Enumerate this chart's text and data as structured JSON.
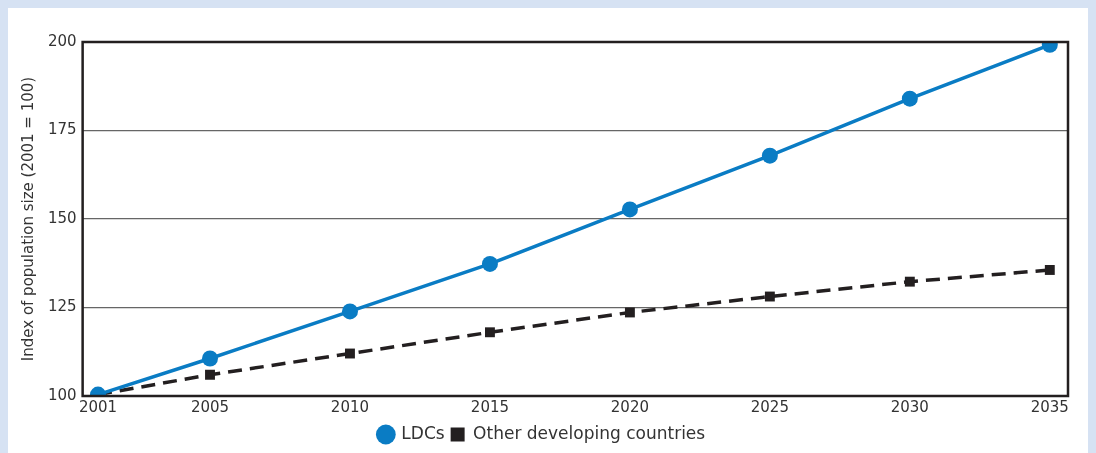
{
  "chart_data": {
    "type": "line",
    "ylabel": "Index of population size (2001 = 100)",
    "x": [
      2001,
      2005,
      2010,
      2015,
      2020,
      2025,
      2030,
      2035
    ],
    "series": [
      {
        "name": "LDCs",
        "color": "#0a7cc4",
        "marker": "circle",
        "line_style": "solid",
        "values": [
          100.4,
          110.6,
          123.9,
          137.3,
          152.7,
          167.9,
          184,
          199.2
        ]
      },
      {
        "name": "Other developing countries",
        "color": "#231f20",
        "marker": "square",
        "line_style": "dashed",
        "values": [
          100.4,
          106,
          112,
          118,
          123.6,
          128.1,
          132.3,
          135.6
        ]
      }
    ],
    "xlim": [
      2000.45,
      2035.65
    ],
    "xticks": [
      2001,
      2005,
      2010,
      2015,
      2020,
      2025,
      2030,
      2035
    ],
    "ylim": [
      100,
      200
    ],
    "yticks": [
      100,
      125,
      150,
      175,
      200
    ],
    "grid": "y",
    "legend": "bottom"
  }
}
